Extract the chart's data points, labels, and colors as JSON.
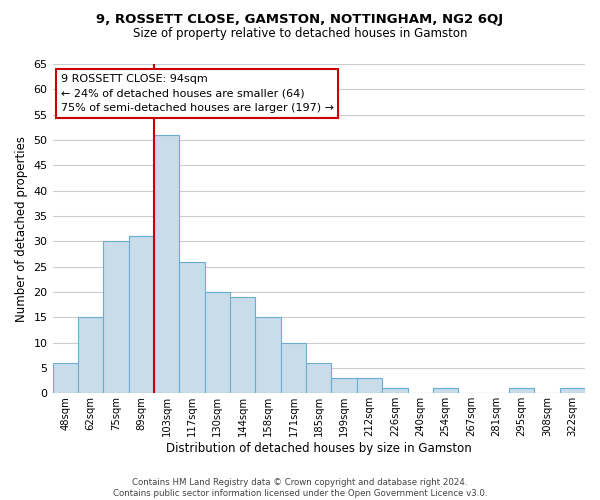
{
  "title": "9, ROSSETT CLOSE, GAMSTON, NOTTINGHAM, NG2 6QJ",
  "subtitle": "Size of property relative to detached houses in Gamston",
  "xlabel": "Distribution of detached houses by size in Gamston",
  "ylabel": "Number of detached properties",
  "bar_labels": [
    "48sqm",
    "62sqm",
    "75sqm",
    "89sqm",
    "103sqm",
    "117sqm",
    "130sqm",
    "144sqm",
    "158sqm",
    "171sqm",
    "185sqm",
    "199sqm",
    "212sqm",
    "226sqm",
    "240sqm",
    "254sqm",
    "267sqm",
    "281sqm",
    "295sqm",
    "308sqm",
    "322sqm"
  ],
  "bar_values": [
    6,
    15,
    30,
    31,
    51,
    26,
    20,
    19,
    15,
    10,
    6,
    3,
    3,
    1,
    0,
    1,
    0,
    0,
    1,
    0,
    1
  ],
  "bar_color": "#c9dcea",
  "bar_edge_color": "#6aadd5",
  "ylim": [
    0,
    65
  ],
  "yticks": [
    0,
    5,
    10,
    15,
    20,
    25,
    30,
    35,
    40,
    45,
    50,
    55,
    60,
    65
  ],
  "vline_color": "#cc0000",
  "vline_pos": 3.5,
  "annotation_title": "9 ROSSETT CLOSE: 94sqm",
  "annotation_line1": "← 24% of detached houses are smaller (64)",
  "annotation_line2": "75% of semi-detached houses are larger (197) →",
  "annotation_box_color": "#cc0000",
  "footer1": "Contains HM Land Registry data © Crown copyright and database right 2024.",
  "footer2": "Contains public sector information licensed under the Open Government Licence v3.0.",
  "background_color": "#ffffff",
  "grid_color": "#cccccc"
}
